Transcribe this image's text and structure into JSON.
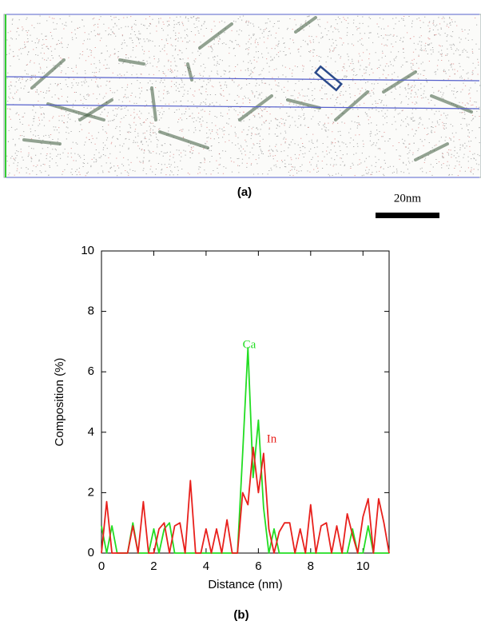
{
  "figure": {
    "panel_a_label": "(a)",
    "scale_bar": "20nm",
    "panel_b_label": "(b)"
  },
  "chart_data": {
    "type": "line",
    "x_label": "Distance (nm)",
    "y_label": "Composition (%)",
    "x": [
      0,
      0.2,
      0.4,
      0.6,
      0.8,
      1.0,
      1.2,
      1.4,
      1.6,
      1.8,
      2.0,
      2.2,
      2.4,
      2.6,
      2.8,
      3.0,
      3.2,
      3.4,
      3.6,
      3.8,
      4.0,
      4.2,
      4.4,
      4.6,
      4.8,
      5.0,
      5.2,
      5.4,
      5.6,
      5.8,
      6.0,
      6.2,
      6.4,
      6.6,
      6.8,
      7.0,
      7.2,
      7.4,
      7.6,
      7.8,
      8.0,
      8.2,
      8.4,
      8.6,
      8.8,
      9.0,
      9.2,
      9.4,
      9.6,
      9.8,
      10.0,
      10.2,
      10.4,
      10.6,
      10.8,
      11.0
    ],
    "series": [
      {
        "name": "Ca",
        "color": "#22dd22",
        "values": [
          0.9,
          0,
          0.9,
          0,
          0,
          0,
          1.0,
          0,
          0,
          0,
          0.8,
          0,
          0.8,
          1.0,
          0,
          0,
          0,
          0,
          0,
          0,
          0,
          0,
          0,
          0,
          0,
          0,
          0,
          3.3,
          6.8,
          2.5,
          4.4,
          1.5,
          0,
          0.8,
          0,
          0,
          0,
          0,
          0,
          0,
          0,
          0,
          0,
          0,
          0,
          0,
          0,
          0,
          0.8,
          0,
          0,
          0.9,
          0,
          0,
          0,
          0
        ]
      },
      {
        "name": "In",
        "color": "#e8201c",
        "values": [
          0,
          1.7,
          0,
          0,
          0,
          0,
          0.9,
          0,
          1.7,
          0,
          0,
          0.8,
          1.0,
          0,
          0.9,
          1.0,
          0,
          2.4,
          0,
          0,
          0.8,
          0,
          0.8,
          0,
          1.1,
          0,
          0,
          2.0,
          1.6,
          3.5,
          2.0,
          3.3,
          0.8,
          0,
          0.7,
          1.0,
          1.0,
          0,
          0.8,
          0,
          1.6,
          0,
          0.9,
          1.0,
          0,
          0.9,
          0,
          1.3,
          0.6,
          0,
          1.2,
          1.8,
          0,
          1.8,
          1.0,
          0
        ]
      }
    ],
    "xlim": [
      0,
      11
    ],
    "xticks": [
      0,
      2,
      4,
      6,
      8,
      10
    ],
    "ylim": [
      0,
      10
    ],
    "yticks": [
      0,
      2,
      4,
      6,
      8,
      10
    ]
  }
}
